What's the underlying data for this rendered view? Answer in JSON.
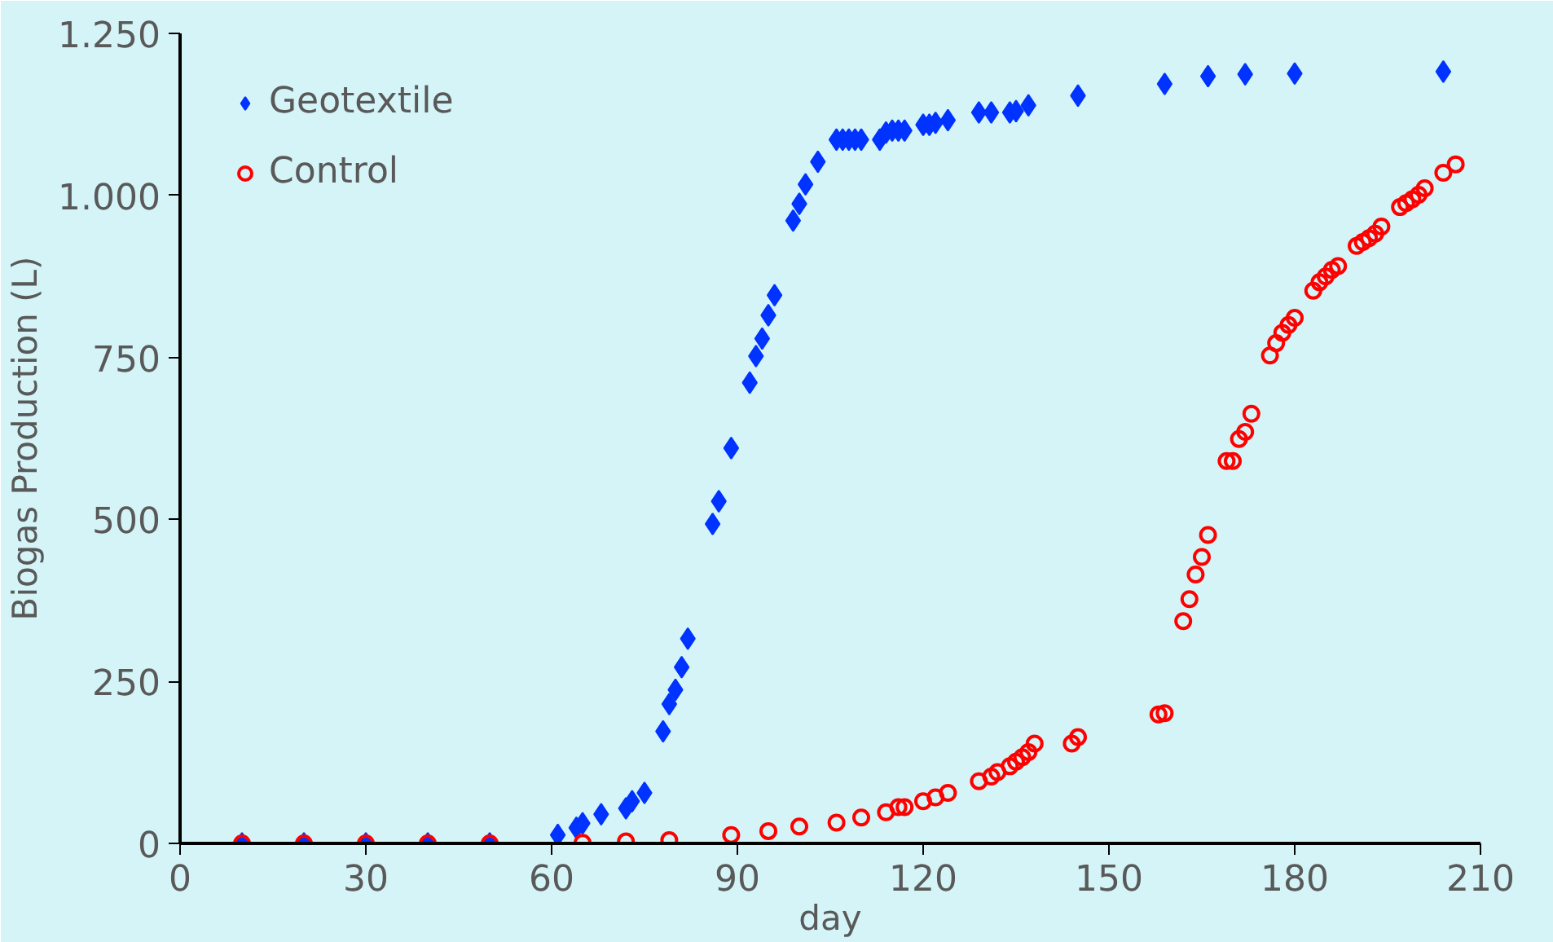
{
  "chart_data": {
    "type": "scatter",
    "xlabel": "day",
    "ylabel": "Biogas Production (L)",
    "xlim": [
      0,
      210
    ],
    "xticks": [
      0,
      30,
      60,
      90,
      120,
      150,
      180,
      210
    ],
    "ylim": [
      0,
      1250
    ],
    "yticks": [
      0,
      250,
      500,
      750,
      {
        "value": 1000,
        "label": "1.000"
      },
      {
        "value": 1250,
        "label": "1.250"
      }
    ],
    "grid": false,
    "legend": "top left",
    "series": [
      {
        "name": "Geotextile",
        "color": "#0033ff",
        "marker": "diamond",
        "x": [
          10,
          20,
          30,
          40,
          50,
          61,
          64,
          65,
          68,
          72,
          73,
          75,
          78,
          79,
          80,
          81,
          82,
          86,
          87,
          89,
          92,
          93,
          94,
          95,
          96,
          99,
          100,
          101,
          103,
          106,
          107,
          108,
          109,
          110,
          113,
          114,
          115,
          116,
          117,
          120,
          121,
          122,
          124,
          129,
          131,
          134,
          135,
          137,
          145,
          159,
          166,
          172,
          180,
          204
        ],
        "values": [
          0,
          0,
          0,
          0,
          0,
          13,
          24,
          31,
          45,
          54,
          65,
          78,
          173,
          215,
          237,
          272,
          316,
          493,
          528,
          610,
          711,
          752,
          779,
          815,
          846,
          961,
          987,
          1017,
          1052,
          1086,
          1086,
          1086,
          1086,
          1086,
          1086,
          1097,
          1100,
          1100,
          1100,
          1109,
          1109,
          1112,
          1116,
          1128,
          1128,
          1128,
          1130,
          1139,
          1154,
          1172,
          1184,
          1187,
          1188,
          1191
        ]
      },
      {
        "name": "Control",
        "color": "#ff0000",
        "marker": "circle",
        "x": [
          10,
          20,
          30,
          40,
          50,
          65,
          72,
          79,
          89,
          95,
          100,
          106,
          110,
          114,
          116,
          117,
          120,
          122,
          124,
          129,
          131,
          132,
          134,
          135,
          136,
          137,
          138,
          144,
          145,
          158,
          159,
          162,
          163,
          164,
          165,
          166,
          169,
          170,
          171,
          172,
          173,
          176,
          177,
          178,
          179,
          180,
          183,
          184,
          185,
          186,
          187,
          190,
          191,
          192,
          193,
          194,
          197,
          198,
          199,
          200,
          201,
          204,
          206
        ],
        "values": [
          0,
          0,
          0,
          0,
          0,
          1,
          3,
          5,
          13,
          19,
          26,
          32,
          40,
          48,
          56,
          56,
          65,
          71,
          78,
          96,
          103,
          110,
          119,
          126,
          133,
          141,
          154,
          154,
          164,
          199,
          201,
          343,
          377,
          415,
          442,
          476,
          590,
          590,
          624,
          635,
          663,
          753,
          772,
          788,
          800,
          811,
          853,
          866,
          875,
          885,
          891,
          922,
          928,
          934,
          941,
          952,
          982,
          988,
          994,
          1001,
          1011,
          1035,
          1048
        ]
      }
    ]
  }
}
